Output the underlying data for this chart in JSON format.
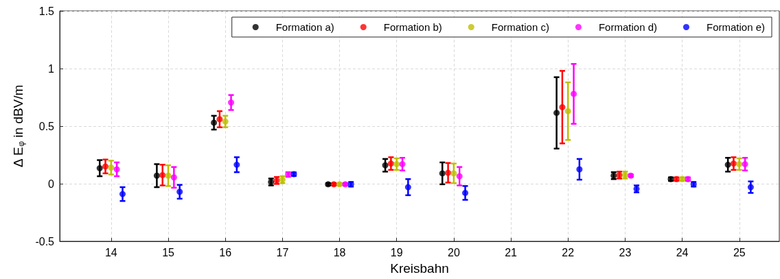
{
  "chart_data": {
    "type": "scatter",
    "xlabel": "Kreisbahn",
    "ylabel": "Δ E$_{φ}$ in dBV/m",
    "xlim": [
      13.1,
      25.7
    ],
    "xticks": [
      14,
      15,
      16,
      17,
      18,
      19,
      20,
      21,
      22,
      23,
      24,
      25
    ],
    "ylim": [
      -0.5,
      1.5
    ],
    "yticks": [
      -0.5,
      0,
      0.5,
      1,
      1.5
    ],
    "grid": true,
    "legend": "top right",
    "marker": "circle",
    "series": [
      {
        "name": "Formation a)",
        "color": "#000000",
        "x": [
          13.8,
          14.8,
          15.8,
          16.8,
          17.8,
          18.8,
          19.8,
          21.8,
          22.8,
          23.8,
          24.8
        ],
        "values": [
          0.135,
          0.07,
          0.53,
          0.015,
          -0.005,
          0.16,
          0.09,
          0.615,
          0.07,
          0.04,
          0.165
        ],
        "errors": [
          0.07,
          0.1,
          0.06,
          0.03,
          0.01,
          0.055,
          0.095,
          0.31,
          0.03,
          0.015,
          0.06
        ]
      },
      {
        "name": "Formation b)",
        "color": "#ff0000",
        "x": [
          13.9,
          14.9,
          15.9,
          16.9,
          17.9,
          18.9,
          19.9,
          21.9,
          22.9,
          23.9,
          24.9
        ],
        "values": [
          0.15,
          0.075,
          0.56,
          0.028,
          -0.005,
          0.175,
          0.095,
          0.665,
          0.075,
          0.04,
          0.175
        ],
        "errors": [
          0.06,
          0.09,
          0.07,
          0.03,
          0.01,
          0.055,
          0.085,
          0.315,
          0.03,
          0.015,
          0.055
        ]
      },
      {
        "name": "Formation c)",
        "color": "#bfbf00",
        "x": [
          14,
          15,
          16,
          17,
          18,
          19,
          20,
          22,
          23,
          24,
          25
        ],
        "values": [
          0.14,
          0.07,
          0.54,
          0.035,
          -0.005,
          0.17,
          0.09,
          0.63,
          0.075,
          0.04,
          0.17
        ],
        "errors": [
          0.06,
          0.09,
          0.05,
          0.03,
          0.01,
          0.05,
          0.085,
          0.25,
          0.03,
          0.015,
          0.05
        ]
      },
      {
        "name": "Formation d)",
        "color": "#ff00ff",
        "x": [
          14.1,
          15.1,
          16.1,
          17.1,
          18.1,
          19.1,
          20.1,
          22.1,
          23.1,
          24.1,
          25.1
        ],
        "values": [
          0.125,
          0.055,
          0.705,
          0.08,
          -0.005,
          0.17,
          0.065,
          0.78,
          0.07,
          0.04,
          0.17
        ],
        "errors": [
          0.06,
          0.09,
          0.065,
          0.02,
          0.01,
          0.055,
          0.08,
          0.26,
          0.01,
          0.015,
          0.055
        ]
      },
      {
        "name": "Formation e)",
        "color": "#0000ff",
        "x": [
          14.2,
          15.2,
          16.2,
          17.2,
          18.2,
          19.2,
          20.2,
          22.2,
          23.2,
          24.2,
          25.2
        ],
        "values": [
          -0.09,
          -0.07,
          0.165,
          0.083,
          -0.005,
          -0.03,
          -0.08,
          0.125,
          -0.045,
          -0.005,
          -0.03
        ],
        "errors": [
          0.06,
          0.06,
          0.065,
          0.015,
          0.02,
          0.07,
          0.06,
          0.09,
          0.03,
          0.02,
          0.05
        ]
      }
    ]
  }
}
